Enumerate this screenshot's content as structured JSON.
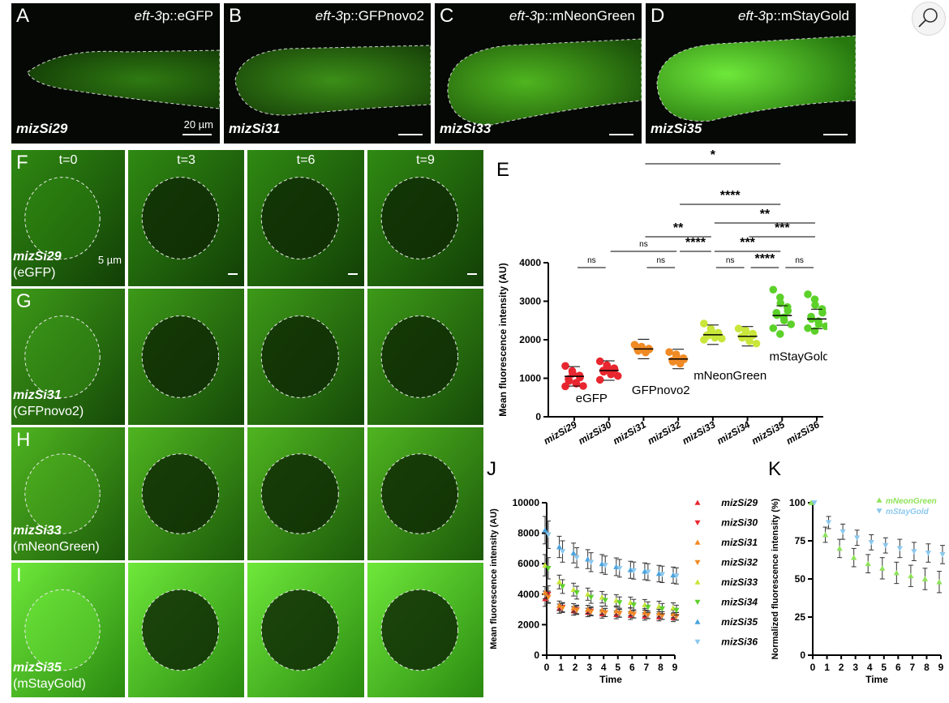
{
  "top_panels": [
    {
      "letter": "A",
      "construct_italic": "eft-3",
      "construct_rest": "p::eGFP",
      "strain": "mizSi29",
      "scale": "20 µm"
    },
    {
      "letter": "B",
      "construct_italic": "eft-3",
      "construct_rest": "p::GFPnovo2",
      "strain": "mizSi31",
      "scale": ""
    },
    {
      "letter": "C",
      "construct_italic": "eft-3",
      "construct_rest": "p::mNeonGreen",
      "strain": "mizSi33",
      "scale": ""
    },
    {
      "letter": "D",
      "construct_italic": "eft-3",
      "construct_rest": "p::mStayGold",
      "strain": "mizSi35",
      "scale": ""
    }
  ],
  "photobleach": {
    "times": [
      "t=0",
      "t=3",
      "t=6",
      "t=9"
    ],
    "rows": [
      {
        "letter": "F",
        "strain": "mizSi29",
        "protein": "(eGFP)",
        "scale": "5 µm"
      },
      {
        "letter": "G",
        "strain": "mizSi31",
        "protein": "(GFPnovo2)"
      },
      {
        "letter": "H",
        "strain": "mizSi33",
        "protein": "(mNeonGreen)"
      },
      {
        "letter": "I",
        "strain": "mizSi35",
        "protein": "(mStayGold)"
      }
    ]
  },
  "panel_labels": {
    "E": "E",
    "J": "J",
    "K": "K"
  },
  "chart_data": [
    {
      "panel": "E",
      "type": "scatter",
      "ylabel": "Mean fluorescence intensity (AU)",
      "ylim": [
        0,
        4000
      ],
      "yticks": [
        0,
        1000,
        2000,
        3000,
        4000
      ],
      "categories": [
        "mizSi29",
        "mizSi30",
        "mizSi31",
        "mizSi32",
        "mizSi33",
        "mizSi34",
        "mizSi35",
        "mizSi36"
      ],
      "means": [
        1050,
        1200,
        1760,
        1500,
        2130,
        2090,
        2630,
        2540
      ],
      "colors": [
        "#e8262f",
        "#e8262f",
        "#f08a24",
        "#f08a24",
        "#c9e63a",
        "#c9e63a",
        "#5cd12a",
        "#5cd12a"
      ],
      "points": [
        [
          1320,
          1190,
          1120,
          1070,
          1020,
          980,
          930,
          880,
          860,
          800,
          790
        ],
        [
          1440,
          1340,
          1300,
          1260,
          1230,
          1200,
          1170,
          1140,
          1100,
          1060,
          960
        ],
        [
          1870,
          1820,
          1790,
          1770,
          1750,
          1730,
          1710,
          1690,
          1670
        ],
        [
          1680,
          1620,
          1560,
          1520,
          1490,
          1460,
          1430,
          1400,
          1380
        ],
        [
          2420,
          2290,
          2230,
          2180,
          2150,
          2120,
          2100,
          2080,
          2050,
          2030,
          2000
        ],
        [
          2290,
          2250,
          2200,
          2160,
          2120,
          2080,
          2050,
          2010,
          1960,
          1900
        ],
        [
          3300,
          3100,
          2950,
          2850,
          2750,
          2700,
          2640,
          2580,
          2500,
          2400,
          2300,
          2150
        ],
        [
          3180,
          3050,
          2900,
          2800,
          2700,
          2600,
          2540,
          2480,
          2400,
          2350,
          2300,
          2230
        ]
      ],
      "group_labels": [
        {
          "text": "eGFP",
          "value": 380,
          "between": [
            0,
            1
          ]
        },
        {
          "text": "GFPnovo2",
          "value": 590,
          "between": [
            2,
            3
          ]
        },
        {
          "text": "mNeonGreen",
          "value": 970,
          "between": [
            4,
            5
          ]
        },
        {
          "text": "mStayGold",
          "value": 1460,
          "between": [
            6,
            7
          ]
        }
      ],
      "comparisons": [
        {
          "from": 0,
          "to": 1,
          "label": "ns",
          "tier": 0
        },
        {
          "from": 2,
          "to": 3,
          "label": "ns",
          "tier": 0
        },
        {
          "from": 4,
          "to": 5,
          "label": "ns",
          "tier": 0
        },
        {
          "from": 6,
          "to": 7,
          "label": "ns",
          "tier": 0
        },
        {
          "from": 5,
          "to": 6,
          "label": "****",
          "tier": 0
        },
        {
          "from": 1,
          "to": 3,
          "label": "ns",
          "tier": 1
        },
        {
          "from": 3,
          "to": 4,
          "label": "****",
          "tier": 1
        },
        {
          "from": 4,
          "to": 6,
          "label": "***",
          "tier": 1
        },
        {
          "from": 5,
          "to": 7,
          "label": "***",
          "tier": 2
        },
        {
          "from": 2,
          "to": 4,
          "label": "**",
          "tier": 2
        },
        {
          "from": 4,
          "to": 7,
          "label": "**",
          "tier": 3
        },
        {
          "from": 3,
          "to": 6,
          "label": "****",
          "tier": 4
        },
        {
          "from": 2,
          "to": 6,
          "label": "*",
          "tier": 5
        }
      ]
    },
    {
      "panel": "J",
      "type": "line",
      "xlabel": "Time",
      "ylabel": "Mean fluorescence intensity (AU)",
      "xlim": [
        0,
        9
      ],
      "ylim": [
        0,
        10000
      ],
      "yticks": [
        0,
        2000,
        4000,
        6000,
        8000,
        10000
      ],
      "x": [
        0,
        1,
        2,
        3,
        4,
        5,
        6,
        7,
        8,
        9
      ],
      "series": [
        {
          "name": "mizSi29",
          "color": "#e8262f",
          "marker": "up",
          "values": [
            3700,
            3050,
            2900,
            2800,
            2700,
            2650,
            2600,
            2550,
            2500,
            2450
          ],
          "err": [
            500,
            300,
            280,
            280,
            270,
            260,
            260,
            250,
            250,
            250
          ]
        },
        {
          "name": "mizSi30",
          "color": "#e8262f",
          "marker": "down",
          "values": [
            4000,
            3150,
            3000,
            2900,
            2800,
            2750,
            2700,
            2650,
            2600,
            2550
          ],
          "err": [
            550,
            300,
            280,
            280,
            270,
            260,
            260,
            250,
            250,
            250
          ]
        },
        {
          "name": "mizSi31",
          "color": "#f08a24",
          "marker": "up",
          "values": [
            4100,
            3250,
            3100,
            3000,
            2950,
            2900,
            2850,
            2800,
            2750,
            2700
          ],
          "err": [
            400,
            300,
            280,
            270,
            270,
            260,
            260,
            250,
            250,
            250
          ]
        },
        {
          "name": "mizSi32",
          "color": "#f08a24",
          "marker": "down",
          "values": [
            3800,
            3100,
            2950,
            2850,
            2800,
            2750,
            2700,
            2650,
            2600,
            2550
          ],
          "err": [
            400,
            300,
            280,
            270,
            270,
            260,
            260,
            250,
            250,
            250
          ]
        },
        {
          "name": "mizSi33",
          "color": "#c9e63a",
          "marker": "up",
          "values": [
            5900,
            4800,
            4300,
            4000,
            3800,
            3600,
            3450,
            3300,
            3200,
            3100
          ],
          "err": [
            700,
            450,
            420,
            400,
            380,
            370,
            360,
            350,
            340,
            330
          ]
        },
        {
          "name": "mizSi34",
          "color": "#5cd12a",
          "marker": "down",
          "values": [
            5700,
            4500,
            4100,
            3800,
            3600,
            3450,
            3300,
            3150,
            3050,
            2950
          ],
          "err": [
            700,
            450,
            420,
            400,
            380,
            370,
            360,
            350,
            340,
            330
          ]
        },
        {
          "name": "mizSi35",
          "color": "#4aa3df",
          "marker": "up",
          "values": [
            8200,
            7100,
            6700,
            6300,
            6000,
            5800,
            5600,
            5500,
            5350,
            5250
          ],
          "err": [
            900,
            700,
            650,
            620,
            600,
            580,
            560,
            550,
            540,
            530
          ]
        },
        {
          "name": "mizSi36",
          "color": "#8cc8ee",
          "marker": "down",
          "values": [
            7900,
            6800,
            6400,
            6100,
            5900,
            5700,
            5550,
            5450,
            5300,
            5200
          ],
          "err": [
            900,
            700,
            650,
            620,
            600,
            580,
            560,
            550,
            540,
            530
          ]
        }
      ]
    },
    {
      "panel": "K",
      "type": "line",
      "xlabel": "Time",
      "ylabel": "Normalized fluorescence intensity (%)",
      "xlim": [
        0,
        9
      ],
      "ylim": [
        0,
        100
      ],
      "yticks": [
        0,
        25,
        50,
        75,
        100
      ],
      "x": [
        0,
        1,
        2,
        3,
        4,
        5,
        6,
        7,
        8,
        9
      ],
      "series": [
        {
          "name": "mNeonGreen",
          "color": "#8ee35a",
          "marker": "up",
          "values": [
            100,
            79,
            70,
            64,
            60,
            57,
            54,
            52,
            50,
            48
          ],
          "err": [
            0,
            5,
            6,
            6,
            6,
            7,
            7,
            7,
            7,
            7
          ]
        },
        {
          "name": "mStayGold",
          "color": "#8cc8ee",
          "marker": "down",
          "values": [
            100,
            87,
            81,
            77,
            74,
            72,
            70,
            68,
            67,
            66
          ],
          "err": [
            0,
            4,
            5,
            5,
            5,
            5,
            6,
            6,
            6,
            6
          ]
        }
      ]
    }
  ]
}
